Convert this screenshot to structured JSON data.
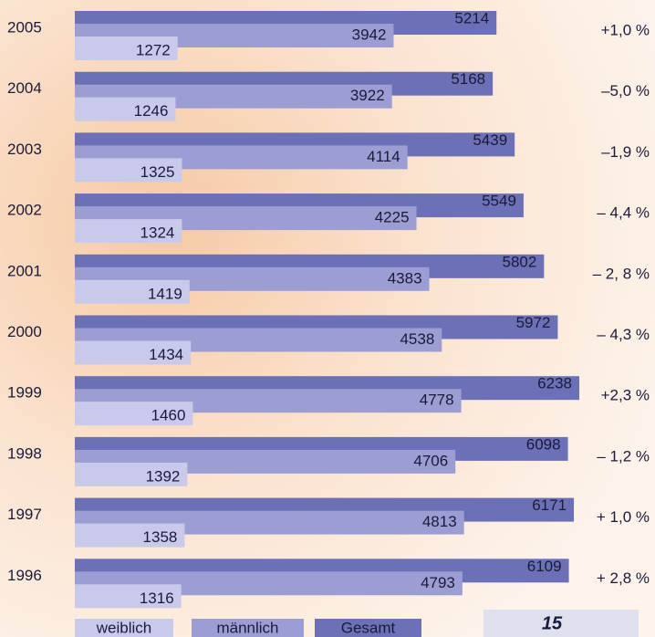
{
  "chart_data": {
    "type": "bar",
    "categories": [
      "2005",
      "2004",
      "2003",
      "2002",
      "2001",
      "2000",
      "1999",
      "1998",
      "1997",
      "1996"
    ],
    "series": [
      {
        "name": "weiblich",
        "color": "#c9cae9",
        "values": [
          1272,
          1246,
          1325,
          1324,
          1419,
          1434,
          1460,
          1392,
          1358,
          1316
        ]
      },
      {
        "name": "männlich",
        "color": "#9c9ed3",
        "values": [
          3942,
          3922,
          4114,
          4225,
          4383,
          4538,
          4778,
          4706,
          4813,
          4793
        ]
      },
      {
        "name": "Gesamt",
        "color": "#6c70b6",
        "values": [
          5214,
          5168,
          5439,
          5549,
          5802,
          5972,
          6238,
          6098,
          6171,
          6109
        ]
      }
    ],
    "changes": [
      "+1,0 %",
      "–5,0 %",
      "–1,9 %",
      "– 4,4 %",
      "– 2, 8 %",
      "– 4,3 %",
      "+2,3 %",
      "– 1,2 %",
      "+ 1,0 %",
      "+ 2,8 %"
    ],
    "page_number": "15"
  }
}
